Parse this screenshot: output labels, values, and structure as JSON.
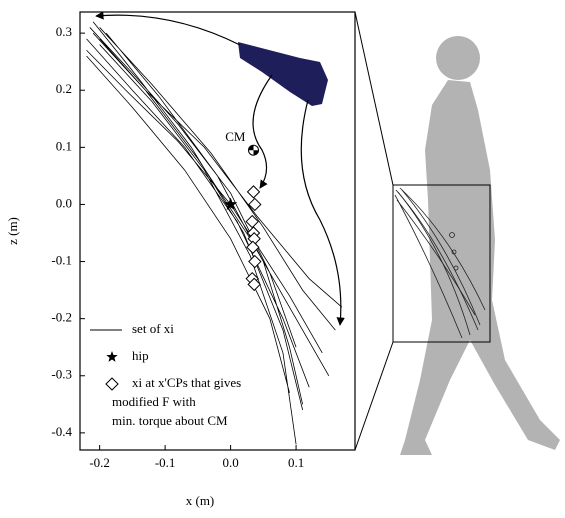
{
  "chart_data": {
    "type": "line",
    "x_label": "x (m)",
    "y_label": "z (m)",
    "xlim": [
      -0.23,
      0.19
    ],
    "ylim": [
      -0.43,
      0.337
    ],
    "xticks": [
      -0.2,
      -0.1,
      {
        "value": 0,
        "label": "0.0"
      },
      0.1
    ],
    "yticks": [
      0.3,
      0.2,
      0.1,
      {
        "value": 0,
        "label": "0.0"
      },
      -0.1,
      -0.2,
      -0.3,
      -0.4
    ],
    "series": [
      {
        "name": "set of xi",
        "type": "line",
        "color": "#000000",
        "x": [
          -0.215,
          -0.15,
          -0.08,
          0.0,
          0.06,
          0.1,
          null,
          -0.22,
          -0.15,
          -0.07,
          0.01,
          0.08,
          0.12,
          null,
          -0.21,
          -0.14,
          -0.06,
          0.02,
          0.08,
          0.11,
          null,
          -0.2,
          -0.12,
          -0.04,
          0.03,
          0.08,
          0.1,
          null,
          -0.22,
          -0.16,
          -0.08,
          0.0,
          0.09,
          0.14,
          null,
          -0.21,
          -0.13,
          -0.05,
          0.03,
          0.1,
          0.15,
          null,
          -0.2,
          -0.12,
          -0.03,
          0.05,
          0.11,
          0.16,
          null,
          -0.19,
          -0.11,
          -0.02,
          0.05,
          0.09,
          0.11,
          null,
          -0.22,
          -0.15,
          -0.07,
          0.0,
          0.06,
          0.09,
          null,
          -0.2,
          -0.13,
          -0.04,
          0.04,
          0.12,
          0.17
        ],
        "values": [
          0.31,
          0.23,
          0.14,
          0.02,
          -0.12,
          -0.25,
          null,
          0.29,
          0.2,
          0.1,
          -0.03,
          -0.2,
          -0.32,
          null,
          0.32,
          0.22,
          0.1,
          -0.05,
          -0.22,
          -0.36,
          null,
          0.28,
          0.18,
          0.06,
          -0.09,
          -0.26,
          -0.42,
          null,
          0.27,
          0.2,
          0.11,
          0.0,
          -0.16,
          -0.26,
          null,
          0.3,
          0.2,
          0.08,
          -0.06,
          -0.2,
          -0.3,
          null,
          0.31,
          0.21,
          0.09,
          -0.04,
          -0.15,
          -0.22,
          null,
          0.3,
          0.19,
          0.05,
          -0.1,
          -0.25,
          -0.35,
          null,
          0.26,
          0.17,
          0.06,
          -0.06,
          -0.2,
          -0.33,
          null,
          0.29,
          0.2,
          0.1,
          -0.02,
          -0.13,
          -0.18
        ]
      },
      {
        "name": "hip",
        "type": "scatter",
        "marker": "star",
        "color": "#000000",
        "x": [
          0.0
        ],
        "values": [
          0.0
        ]
      },
      {
        "name": [
          "xi at x'CPs that gives",
          "modified F with",
          "min. torque about CM"
        ],
        "type": "scatter",
        "marker": "diamond",
        "color": "#000000",
        "x": [
          0.035,
          0.037,
          0.033,
          0.035,
          0.036,
          0.034,
          0.037,
          0.033,
          0.036
        ],
        "values": [
          0.022,
          0.0,
          -0.03,
          -0.05,
          -0.06,
          -0.075,
          -0.1,
          -0.13,
          -0.14
        ]
      }
    ],
    "annotations": [
      {
        "text": "CM",
        "x": 0.035,
        "y": 0.095
      }
    ]
  }
}
